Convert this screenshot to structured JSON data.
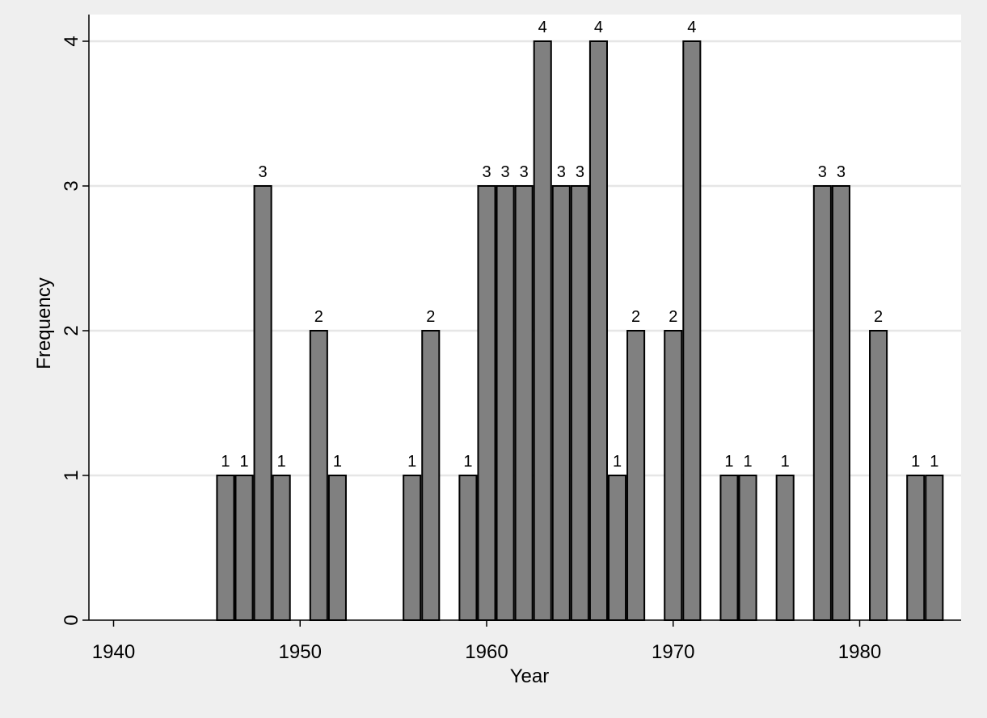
{
  "chart_data": {
    "type": "bar",
    "xlabel": "Year",
    "ylabel": "Frequency",
    "x_ticks": [
      1940,
      1950,
      1960,
      1970,
      1980
    ],
    "y_ticks": [
      0,
      1,
      2,
      3,
      4
    ],
    "xlim": [
      1939,
      1985
    ],
    "ylim": [
      0,
      4
    ],
    "grid": true,
    "colors": {
      "bar_fill": "#808080",
      "bar_stroke": "#000000",
      "plot_bg": "#ffffff",
      "grid": "#e6e6e6",
      "outer_bg": "#efefef"
    },
    "bars": [
      {
        "x": 1946,
        "value": 1
      },
      {
        "x": 1947,
        "value": 1
      },
      {
        "x": 1948,
        "value": 3
      },
      {
        "x": 1949,
        "value": 1
      },
      {
        "x": 1951,
        "value": 2
      },
      {
        "x": 1952,
        "value": 1
      },
      {
        "x": 1956,
        "value": 1
      },
      {
        "x": 1957,
        "value": 2
      },
      {
        "x": 1959,
        "value": 1
      },
      {
        "x": 1960,
        "value": 3
      },
      {
        "x": 1961,
        "value": 3
      },
      {
        "x": 1962,
        "value": 3
      },
      {
        "x": 1963,
        "value": 4
      },
      {
        "x": 1964,
        "value": 3
      },
      {
        "x": 1965,
        "value": 3
      },
      {
        "x": 1966,
        "value": 4
      },
      {
        "x": 1967,
        "value": 1
      },
      {
        "x": 1968,
        "value": 2
      },
      {
        "x": 1970,
        "value": 2
      },
      {
        "x": 1971,
        "value": 4
      },
      {
        "x": 1973,
        "value": 1
      },
      {
        "x": 1974,
        "value": 1
      },
      {
        "x": 1976,
        "value": 1
      },
      {
        "x": 1978,
        "value": 3
      },
      {
        "x": 1979,
        "value": 3
      },
      {
        "x": 1981,
        "value": 2
      },
      {
        "x": 1983,
        "value": 1
      },
      {
        "x": 1984,
        "value": 1
      }
    ]
  }
}
